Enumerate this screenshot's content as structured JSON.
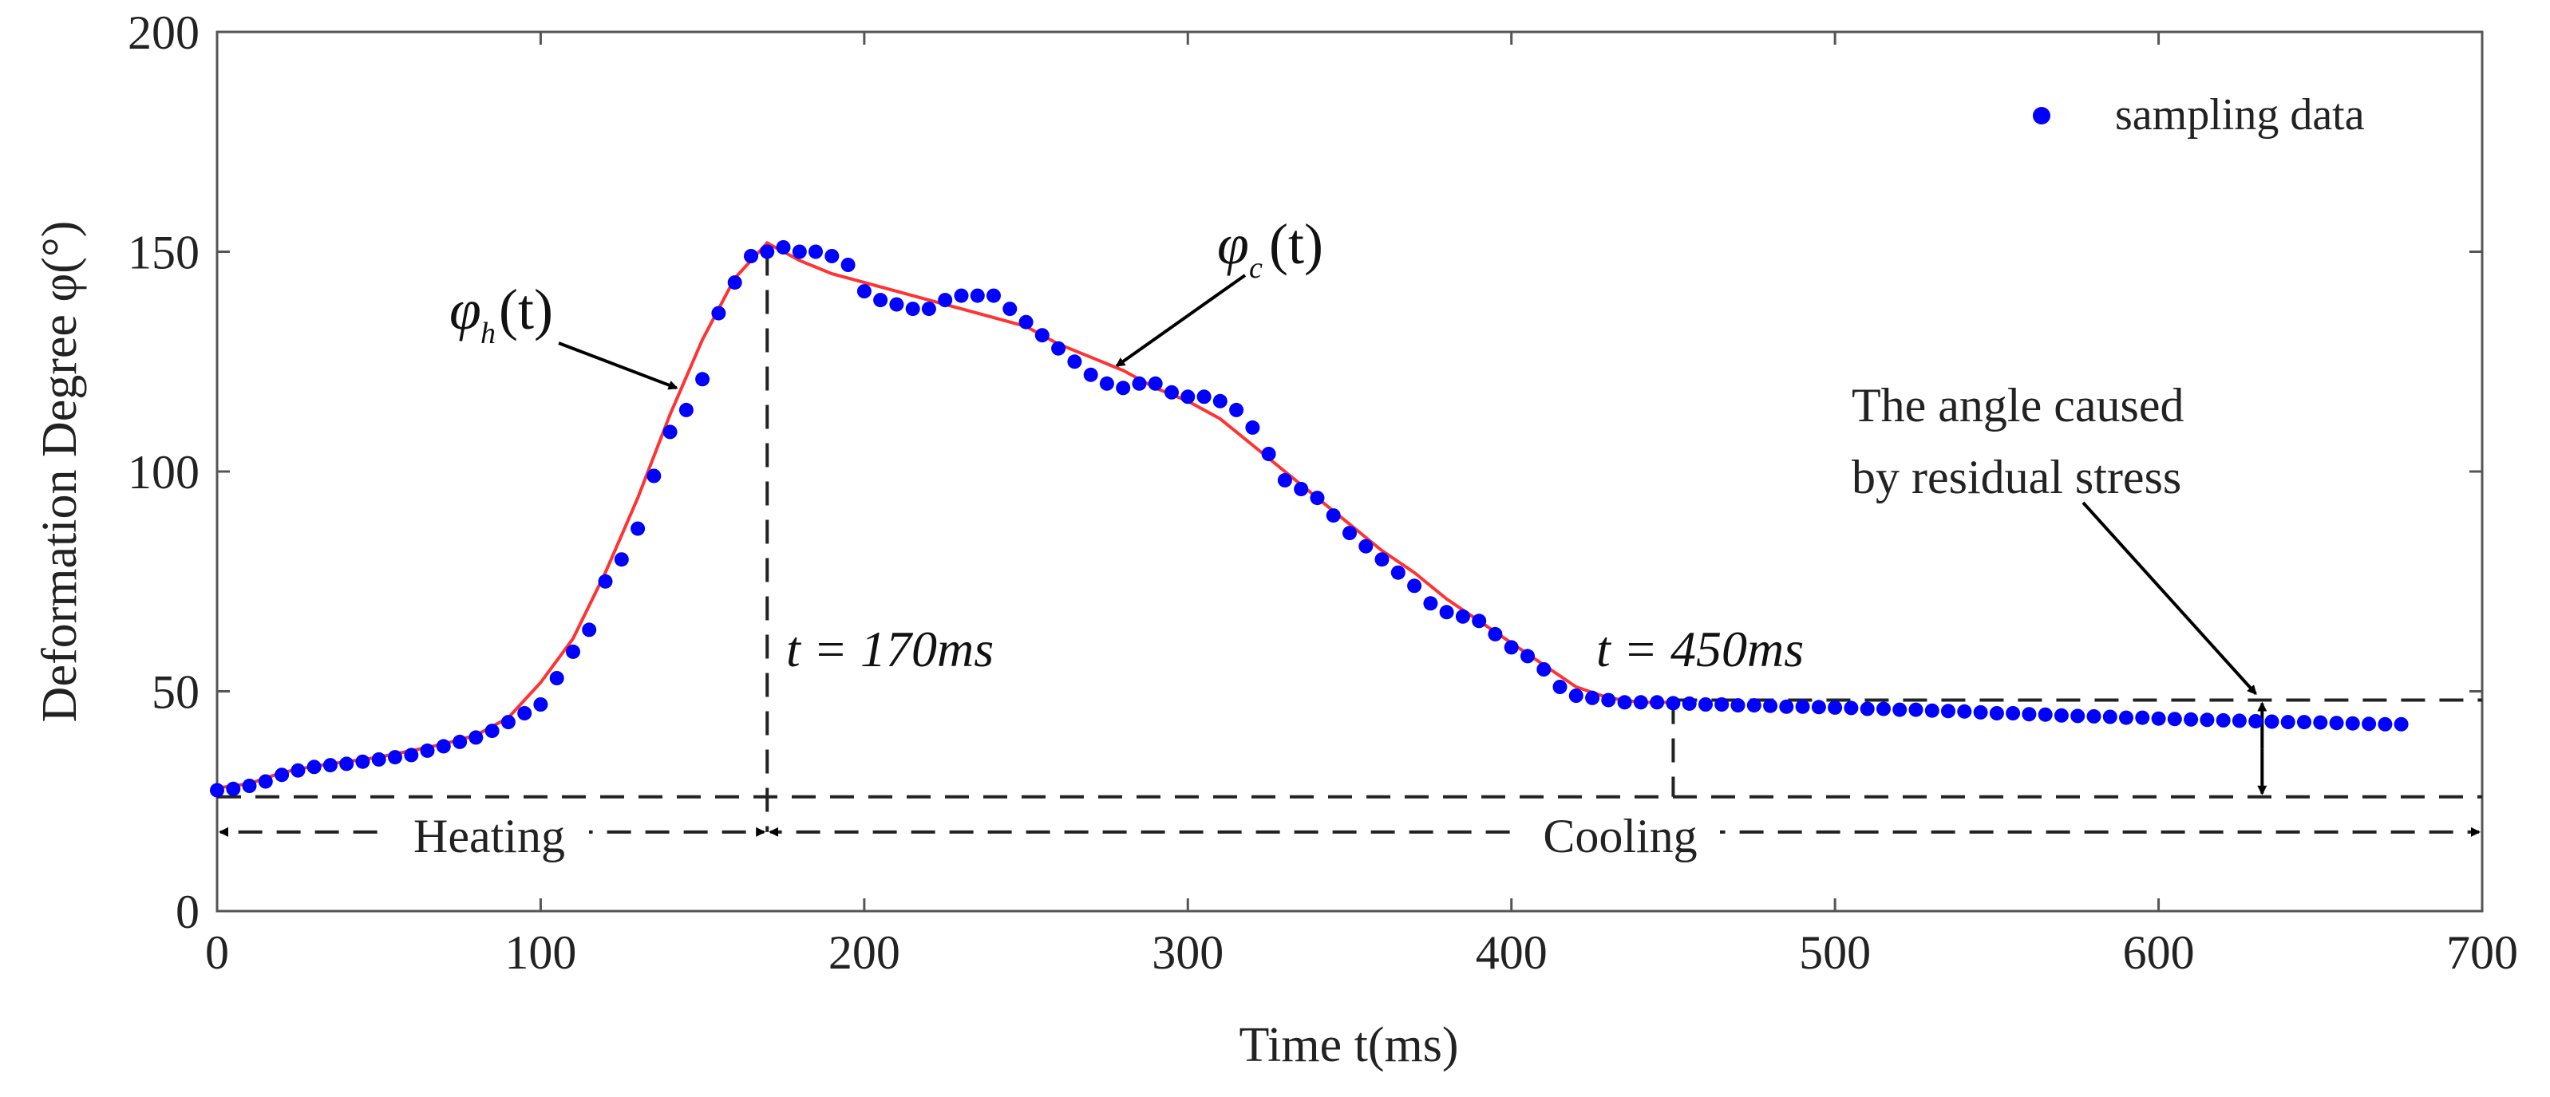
{
  "chart_data": {
    "type": "scatter",
    "title": "",
    "xlabel": "Time t(ms)",
    "ylabel": "Deformation Degree φ(°)",
    "xlim": [
      0,
      700
    ],
    "ylim": [
      0,
      200
    ],
    "xticks": [
      "0",
      "100",
      "200",
      "300",
      "400",
      "500",
      "600",
      "700"
    ],
    "yticks": [
      "0",
      "50",
      "100",
      "150",
      "200"
    ],
    "grid": false,
    "legend": {
      "position": "top-right",
      "entries": [
        "sampling data"
      ]
    },
    "series": [
      {
        "name": "sampling data",
        "kind": "scatter",
        "color": "#0000ff",
        "x": [
          0,
          5,
          10,
          15,
          20,
          25,
          30,
          35,
          40,
          45,
          50,
          55,
          60,
          65,
          70,
          75,
          80,
          85,
          90,
          95,
          100,
          105,
          110,
          115,
          120,
          125,
          130,
          135,
          140,
          145,
          150,
          155,
          160,
          165,
          170,
          175,
          180,
          185,
          190,
          195,
          200,
          205,
          210,
          215,
          220,
          225,
          230,
          235,
          240,
          245,
          250,
          255,
          260,
          265,
          270,
          275,
          280,
          285,
          290,
          295,
          300,
          305,
          310,
          315,
          320,
          325,
          330,
          335,
          340,
          345,
          350,
          355,
          360,
          365,
          370,
          375,
          380,
          385,
          390,
          395,
          400,
          405,
          410,
          415,
          420,
          425,
          430,
          435,
          440,
          445,
          450,
          455,
          460,
          465,
          470,
          475,
          480,
          485,
          490,
          495,
          500,
          505,
          510,
          515,
          520,
          525,
          530,
          535,
          540,
          545,
          550,
          555,
          560,
          565,
          570,
          575,
          580,
          585,
          590,
          595,
          600,
          605,
          610,
          615,
          620,
          625,
          630,
          635,
          640,
          645,
          650,
          655,
          660,
          665,
          670,
          675
        ],
        "y": [
          27.5,
          27.8,
          28.5,
          29.5,
          31,
          32,
          32.8,
          33.2,
          33.5,
          34,
          34.5,
          35,
          35.5,
          36.5,
          37.5,
          38.5,
          39.5,
          41,
          43,
          45,
          47,
          53,
          59,
          64,
          75,
          80,
          87,
          99,
          109,
          114,
          121,
          136,
          143,
          149,
          150,
          151,
          150,
          150,
          149,
          147,
          141,
          139,
          138,
          137,
          137,
          139,
          140,
          140,
          140,
          137,
          134,
          131,
          128,
          125,
          122,
          120,
          119,
          120,
          120,
          118,
          117,
          117,
          116,
          114,
          110,
          104,
          98,
          96,
          94,
          90,
          86,
          83,
          80,
          77,
          74,
          70,
          68,
          67,
          66,
          63,
          60,
          58,
          55,
          51,
          49,
          48.5,
          48,
          47.5,
          47.5,
          47.5,
          47.3,
          47.2,
          47,
          47,
          46.8,
          46.8,
          46.7,
          46.5,
          46.5,
          46.4,
          46.3,
          46.2,
          46,
          46,
          45.8,
          45.8,
          45.6,
          45.5,
          45.4,
          45.2,
          45,
          45,
          44.8,
          44.7,
          44.5,
          44.4,
          44.3,
          44.2,
          44,
          44,
          43.8,
          43.7,
          43.6,
          43.5,
          43.4,
          43.3,
          43.2,
          43.1,
          43,
          43,
          42.9,
          42.8,
          42.7,
          42.6,
          42.5,
          42.5
        ]
      },
      {
        "name": "",
        "kind": "line",
        "color": "#ff3333",
        "x": [
          0,
          10,
          20,
          30,
          40,
          50,
          60,
          70,
          80,
          90,
          100,
          110,
          120,
          130,
          140,
          150,
          160,
          170,
          180,
          190,
          200,
          210,
          220,
          230,
          240,
          250,
          260,
          270,
          280,
          290,
          300,
          310,
          320,
          330,
          340,
          350,
          360,
          370,
          380,
          390,
          400,
          410,
          420,
          430,
          440,
          450
        ],
        "y": [
          28,
          29,
          31.5,
          33,
          34,
          35,
          36.5,
          38,
          40,
          44,
          52,
          62,
          77,
          94,
          113,
          130,
          144,
          152,
          148,
          145,
          143,
          141,
          139,
          137,
          135,
          133,
          129,
          126,
          123,
          119,
          116,
          112,
          106,
          100,
          94,
          88,
          82,
          77,
          71,
          66,
          61,
          56,
          51,
          48.5,
          47.5,
          47.5
        ]
      }
    ],
    "annotations": {
      "phi_h_sub": "h",
      "phi_c_sub": "c",
      "phi_symbol": "φ",
      "func_arg": "(t)",
      "t170_label": "t = 170ms",
      "t450_label": "t = 450ms",
      "t170_x": 170,
      "t450_x": 450,
      "heating_label": "Heating",
      "cooling_label": "Cooling",
      "residual_line1": "The angle caused",
      "residual_line2": "by residual stress",
      "baseline_y": 26,
      "residual_level_y": 48,
      "residual_arrow_x": 632,
      "phase_arrow_y": 18
    }
  }
}
